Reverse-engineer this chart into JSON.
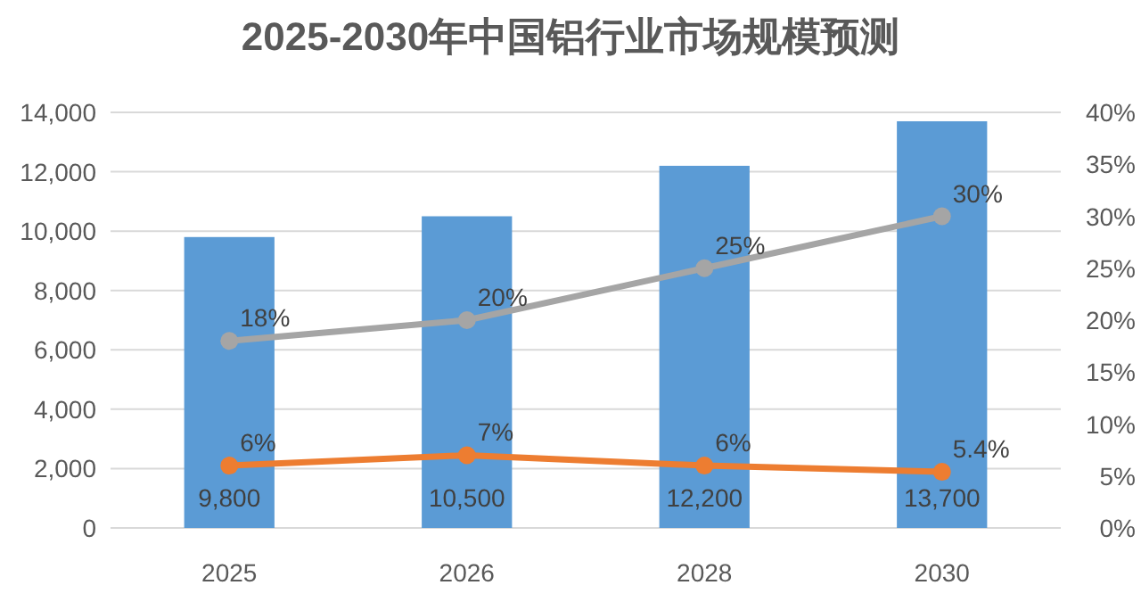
{
  "chart_data": {
    "type": "bar",
    "title": "2025-2030年中国铝行业市场规模预测",
    "categories": [
      "2025",
      "2026",
      "2028",
      "2030"
    ],
    "series": [
      {
        "color": "#5b9bd5",
        "values": [
          9800,
          10500,
          12200,
          13700
        ],
        "value_labels": [
          "9,800",
          "10,500",
          "12,200",
          "13,700"
        ]
      },
      {
        "type": "line",
        "axis": "y2",
        "color": "#a5a5a5",
        "values": [
          18,
          20,
          25,
          30
        ],
        "value_labels": [
          "18%",
          "20%",
          "25%",
          "30%"
        ]
      },
      {
        "type": "line",
        "axis": "y2",
        "color": "#ed7d31",
        "values": [
          6,
          7,
          6,
          5.4
        ],
        "value_labels": [
          "6%",
          "7%",
          "6%",
          "5.4%"
        ]
      }
    ],
    "ylim": [
      0,
      14000
    ],
    "yticks": [
      {
        "value": 0,
        "label": "0"
      },
      {
        "value": 2000,
        "label": "2,000"
      },
      {
        "value": 4000,
        "label": "4,000"
      },
      {
        "value": 6000,
        "label": "6,000"
      },
      {
        "value": 8000,
        "label": "8,000"
      },
      {
        "value": 10000,
        "label": "10,000"
      },
      {
        "value": 12000,
        "label": "12,000"
      },
      {
        "value": 14000,
        "label": "14,000"
      }
    ],
    "y2lim": [
      0,
      40
    ],
    "y2ticks": [
      {
        "value": 0,
        "label": "0%"
      },
      {
        "value": 5,
        "label": "5%"
      },
      {
        "value": 10,
        "label": "10%"
      },
      {
        "value": 15,
        "label": "15%"
      },
      {
        "value": 20,
        "label": "20%"
      },
      {
        "value": 25,
        "label": "25%"
      },
      {
        "value": 30,
        "label": "30%"
      },
      {
        "value": 35,
        "label": "35%"
      },
      {
        "value": 40,
        "label": "40%"
      }
    ],
    "grid": "y",
    "marker": "circle",
    "line_style": "solid"
  }
}
